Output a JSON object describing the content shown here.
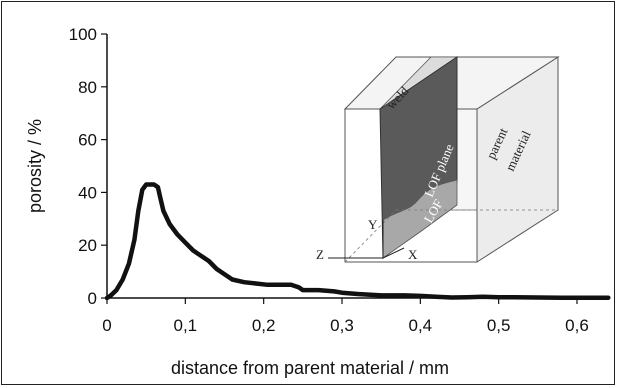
{
  "chart_data": {
    "type": "line",
    "xlabel": "distance from parent material / mm",
    "ylabel": "porosity / %",
    "xlim": [
      0,
      0.64
    ],
    "ylim": [
      0,
      100
    ],
    "x_ticks": [
      "0",
      "0,1",
      "0,2",
      "0,3",
      "0,4",
      "0,5",
      "0,6"
    ],
    "x_tick_values": [
      0,
      0.1,
      0.2,
      0.3,
      0.4,
      0.5,
      0.6
    ],
    "y_ticks": [
      "0",
      "20",
      "40",
      "60",
      "80",
      "100"
    ],
    "y_tick_values": [
      0,
      20,
      40,
      60,
      80,
      100
    ],
    "grid": false,
    "series": [
      {
        "color": "#111111",
        "points": [
          [
            0.0,
            0
          ],
          [
            0.005,
            1
          ],
          [
            0.012,
            3
          ],
          [
            0.02,
            7
          ],
          [
            0.028,
            13
          ],
          [
            0.035,
            22
          ],
          [
            0.04,
            33
          ],
          [
            0.045,
            41
          ],
          [
            0.05,
            43
          ],
          [
            0.06,
            43
          ],
          [
            0.065,
            42
          ],
          [
            0.068,
            38
          ],
          [
            0.072,
            33
          ],
          [
            0.08,
            28
          ],
          [
            0.09,
            24
          ],
          [
            0.1,
            21
          ],
          [
            0.11,
            18
          ],
          [
            0.12,
            16
          ],
          [
            0.13,
            14
          ],
          [
            0.14,
            11
          ],
          [
            0.15,
            9
          ],
          [
            0.16,
            7
          ],
          [
            0.175,
            6
          ],
          [
            0.19,
            5.5
          ],
          [
            0.205,
            5
          ],
          [
            0.22,
            5
          ],
          [
            0.235,
            5
          ],
          [
            0.245,
            4
          ],
          [
            0.25,
            3
          ],
          [
            0.27,
            3
          ],
          [
            0.29,
            2.5
          ],
          [
            0.3,
            2
          ],
          [
            0.32,
            1.5
          ],
          [
            0.35,
            1
          ],
          [
            0.38,
            1
          ],
          [
            0.4,
            0.8
          ],
          [
            0.42,
            0.5
          ],
          [
            0.44,
            0.2
          ],
          [
            0.46,
            0.3
          ],
          [
            0.48,
            0.5
          ],
          [
            0.5,
            0.3
          ],
          [
            0.52,
            0.3
          ],
          [
            0.55,
            0.2
          ],
          [
            0.58,
            0.1
          ],
          [
            0.6,
            0.1
          ],
          [
            0.64,
            0.1
          ]
        ]
      }
    ]
  },
  "inset": {
    "labels": {
      "weld": "weld",
      "lof_plane": "LOF plane",
      "lof": "LOF",
      "parent_material_1": "parent",
      "parent_material_2": "material",
      "y_axis": "Y",
      "z_axis": "Z",
      "x_axis": "X"
    }
  }
}
